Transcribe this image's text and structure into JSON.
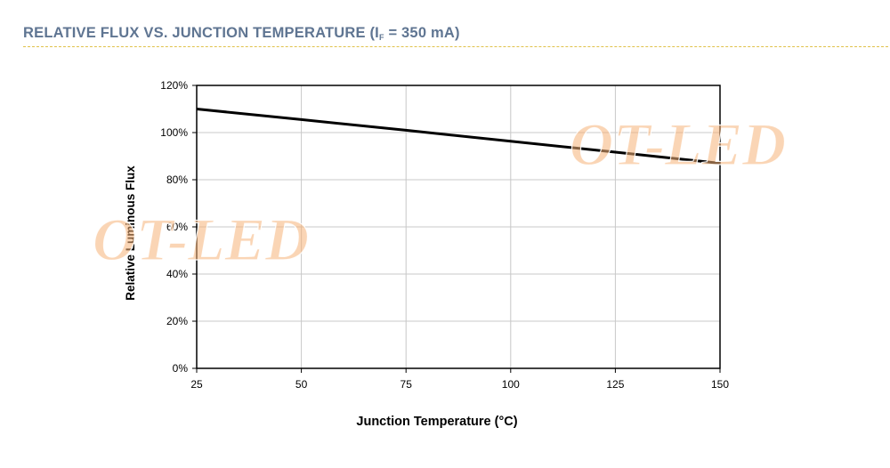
{
  "header": {
    "title_pre": "RELATIVE FLUX VS. JUNCTION TEMPERATURE (I",
    "title_sub": "F",
    "title_post": " = 350 mA)"
  },
  "watermarks": [
    "OT-LED",
    "OT-LED"
  ],
  "colors": {
    "header": "#5f7592",
    "rule": "#e0c24a",
    "line": "#000000",
    "grid": "#c8c8c8",
    "watermark": "#f6b278"
  },
  "chart_data": {
    "type": "line",
    "title": "RELATIVE FLUX VS. JUNCTION TEMPERATURE (IF = 350 mA)",
    "xlabel": "Junction Temperature (°C)",
    "ylabel": "Relative Luminous Flux",
    "xlim": [
      25,
      150
    ],
    "ylim": [
      0,
      120
    ],
    "x_ticks": [
      25,
      50,
      75,
      100,
      125,
      150
    ],
    "x_tick_labels": [
      "25",
      "50",
      "75",
      "100",
      "125",
      "150"
    ],
    "y_ticks": [
      0,
      20,
      40,
      60,
      80,
      100,
      120
    ],
    "y_tick_labels": [
      "0%",
      "20%",
      "40%",
      "60%",
      "80%",
      "100%",
      "120%"
    ],
    "grid": true,
    "series": [
      {
        "name": "Relative Luminous Flux",
        "x": [
          25,
          50,
          75,
          100,
          125,
          150
        ],
        "y": [
          110,
          105.5,
          101,
          96.3,
          91.7,
          87
        ]
      }
    ]
  }
}
